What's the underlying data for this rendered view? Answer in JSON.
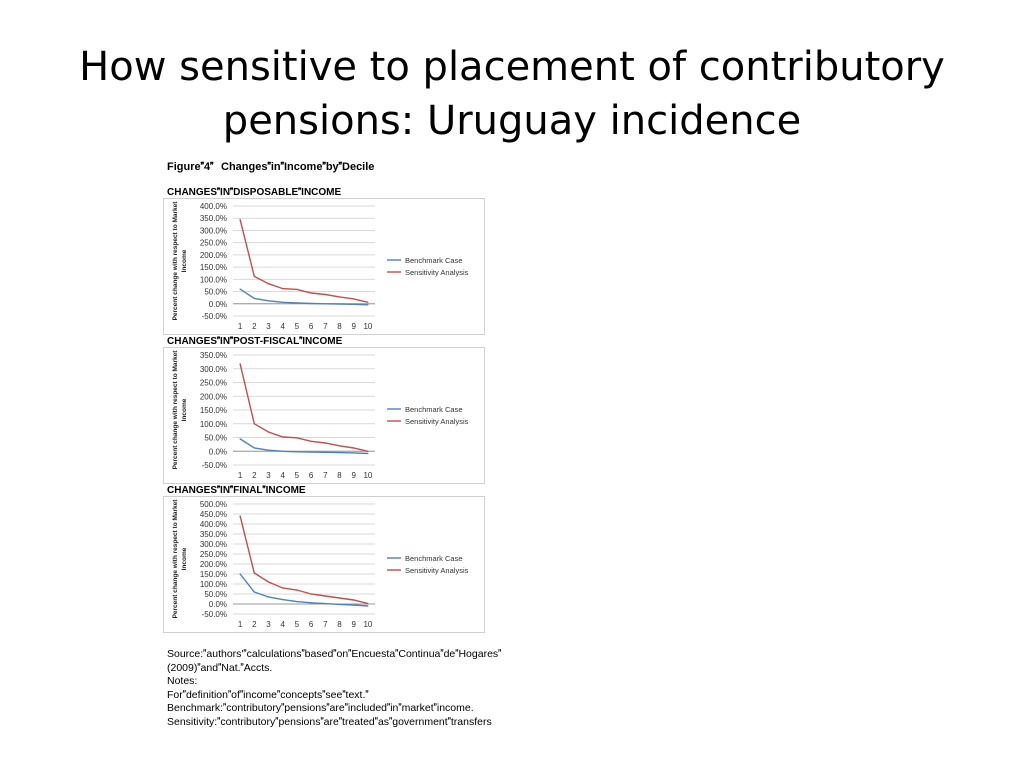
{
  "title_line1": "How sensitive to placement of contributory",
  "title_line2": "pensions: Uruguay incidence",
  "figure_title": "Figure4ChangesinIncomebyDecile",
  "colors": {
    "benchmark": "#4f81bd",
    "sensitivity": "#c0504d",
    "grid": "#d9d9d9",
    "border": "#d0d0d0"
  },
  "chart_data": [
    {
      "type": "line",
      "title": "CHANGESINDISPOSABLEINCOME",
      "ylabel": "Percent change with respect to Market Income",
      "x": [
        "1",
        "2",
        "3",
        "4",
        "5",
        "6",
        "7",
        "8",
        "9",
        "10"
      ],
      "yticks": [
        "400.0%",
        "350.0%",
        "300.0%",
        "250.0%",
        "200.0%",
        "150.0%",
        "100.0%",
        "50.0%",
        "0.0%",
        "-50.0%"
      ],
      "ylim": [
        -50,
        400
      ],
      "legend_position": "right",
      "series": [
        {
          "name": "Benchmark Case",
          "values": [
            60,
            22,
            12,
            6,
            3,
            1,
            0,
            -1,
            -2,
            -4
          ]
        },
        {
          "name": "Sensitivity Analysis",
          "values": [
            345,
            112,
            82,
            62,
            59,
            44,
            38,
            28,
            20,
            6
          ]
        }
      ]
    },
    {
      "type": "line",
      "title": "CHANGESINPOST-FISCALINCOME",
      "ylabel": "Percent change with respect to Market Income",
      "x": [
        "1",
        "2",
        "3",
        "4",
        "5",
        "6",
        "7",
        "8",
        "9",
        "10"
      ],
      "yticks": [
        "350.0%",
        "300.0%",
        "250.0%",
        "200.0%",
        "150.0%",
        "100.0%",
        "50.0%",
        "0.0%",
        "-50.0%"
      ],
      "ylim": [
        -50,
        350
      ],
      "legend_position": "right",
      "series": [
        {
          "name": "Benchmark Case",
          "values": [
            45,
            12,
            4,
            0,
            -2,
            -3,
            -4,
            -5,
            -6,
            -8
          ]
        },
        {
          "name": "Sensitivity Analysis",
          "values": [
            318,
            100,
            70,
            52,
            49,
            36,
            30,
            20,
            12,
            0
          ]
        }
      ]
    },
    {
      "type": "line",
      "title": "CHANGESINFINALINCOME",
      "ylabel": "Percent change with respect to Market Income",
      "x": [
        "1",
        "2",
        "3",
        "4",
        "5",
        "6",
        "7",
        "8",
        "9",
        "10"
      ],
      "yticks": [
        "500.0%",
        "450.0%",
        "400.0%",
        "350.0%",
        "300.0%",
        "250.0%",
        "200.0%",
        "150.0%",
        "100.0%",
        "50.0%",
        "0.0%",
        "-50.0%"
      ],
      "ylim": [
        -50,
        500
      ],
      "legend_position": "right",
      "series": [
        {
          "name": "Benchmark Case",
          "values": [
            150,
            60,
            35,
            22,
            12,
            6,
            2,
            -2,
            -5,
            -10
          ]
        },
        {
          "name": "Sensitivity Analysis",
          "values": [
            440,
            155,
            110,
            80,
            70,
            50,
            40,
            30,
            20,
            2
          ]
        }
      ]
    }
  ],
  "notes": [
    "Source:authors'calculationsbasedonEncuestaContinuadeHogares",
    "(2009)andNat.Accts.",
    "Notes:",
    "Fordefinitionofincomeconceptsseetext.",
    "Benchmark:contributorypensionsareincludedinmarketincome.",
    "Sensitivity:contributorypensionsaretreatedasgovernmenttransfers"
  ]
}
